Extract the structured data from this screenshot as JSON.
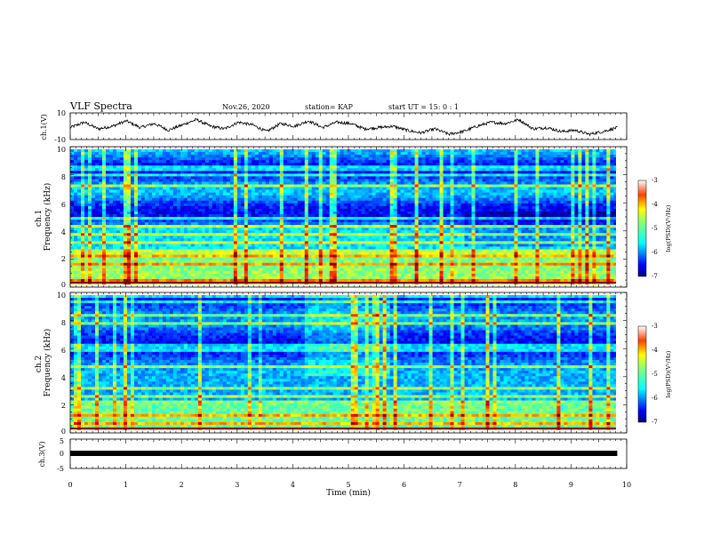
{
  "header": {
    "title": "VLF Spectra",
    "date": "Nov.26, 2020",
    "station": "station= KAP",
    "start": "start UT =  15: 0  : 1"
  },
  "chart_data": [
    {
      "type": "line",
      "panel": "ch1-waveform",
      "ylabel": "ch.1(V)",
      "ylim": [
        -10,
        10
      ],
      "yticks": [
        "10",
        "-10"
      ],
      "xlim": [
        0,
        10
      ],
      "x_end_min": 9.83,
      "series": [
        {
          "values": [
            -1,
            3,
            -2,
            0,
            4,
            -1,
            2,
            -3,
            1,
            5,
            0,
            -2,
            3,
            1,
            -4,
            2,
            0,
            4,
            -1,
            3,
            2,
            -2,
            -1,
            0,
            -3,
            -5,
            -2,
            -6,
            -4,
            0,
            3,
            2,
            5,
            -2,
            -1,
            -4,
            -3,
            -6,
            -4,
            -1
          ]
        }
      ]
    },
    {
      "type": "heatmap",
      "panel": "ch1-spectrogram",
      "ylabel": "ch.1\nFrequency (kHz)",
      "ylim": [
        0,
        10
      ],
      "yticks": [
        "0",
        "2",
        "4",
        "6",
        "8",
        "10"
      ],
      "xlim": [
        0,
        10
      ],
      "colorbar": {
        "label": "log(PSD)(V²/Hz)",
        "range": [
          -7,
          -3
        ],
        "ticks": [
          "-3",
          "-4",
          "-5",
          "-6",
          "-7"
        ]
      }
    },
    {
      "type": "heatmap",
      "panel": "ch2-spectrogram",
      "ylabel": "ch.2\nFrequency (kHz)",
      "ylim": [
        0,
        10
      ],
      "yticks": [
        "0",
        "2",
        "4",
        "6",
        "8",
        "10"
      ],
      "xlim": [
        0,
        10
      ],
      "colorbar": {
        "label": "log(PSD)(V²/Hz)",
        "range": [
          -7,
          -3
        ],
        "ticks": [
          "-3",
          "-4",
          "-5",
          "-6",
          "-7"
        ]
      }
    },
    {
      "type": "line",
      "panel": "ch3-waveform",
      "ylabel": "ch.3(V)",
      "ylim": [
        -5,
        5
      ],
      "yticks": [
        "5",
        "0",
        "-5"
      ],
      "xlim": [
        0,
        10
      ],
      "series": [
        {
          "values": [
            -1.2,
            -1.2
          ]
        }
      ]
    }
  ],
  "xaxis": {
    "label": "Time (min)",
    "ticks": [
      "0",
      "1",
      "2",
      "3",
      "4",
      "5",
      "6",
      "7",
      "8",
      "9",
      "10"
    ]
  },
  "colors": {
    "jet": [
      "#00007f",
      "#0000ff",
      "#007fff",
      "#00ffff",
      "#7fff7f",
      "#ffff00",
      "#ff7f00",
      "#ff0000",
      "#7f0000"
    ]
  }
}
